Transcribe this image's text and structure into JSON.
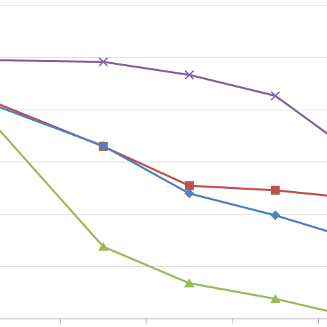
{
  "chart_data": {
    "type": "line",
    "title": "",
    "xlabel": "",
    "ylabel": "",
    "x": [
      -0.2,
      1,
      2,
      3,
      3.6
    ],
    "xlim": [
      -0.2,
      3.6
    ],
    "ylim": [
      0,
      6
    ],
    "y_gridlines": [
      0,
      1,
      2,
      3,
      4,
      5,
      6
    ],
    "x_ticks": [
      0.5,
      1.5,
      2.5,
      3.5
    ],
    "grid": "horizontal",
    "legend": "none",
    "series": [
      {
        "color": "#8064A2",
        "marker": "x",
        "values": [
          4.95,
          4.92,
          4.67,
          4.27,
          3.55
        ],
        "markers_at": [
          1,
          2,
          3
        ]
      },
      {
        "color": "#C0504D",
        "marker": "square",
        "values": [
          4.1,
          3.3,
          2.55,
          2.46,
          2.36
        ],
        "markers_at": [
          1,
          2,
          3
        ]
      },
      {
        "color": "#4F81BD",
        "marker": "diamond",
        "values": [
          4.05,
          3.31,
          2.4,
          1.98,
          1.68
        ],
        "markers_at": [
          1,
          2,
          3
        ]
      },
      {
        "color": "#9BBB59",
        "marker": "triangle",
        "values": [
          3.6,
          1.38,
          0.68,
          0.38,
          0.15
        ],
        "markers_at": [
          1,
          2,
          3
        ]
      }
    ]
  }
}
